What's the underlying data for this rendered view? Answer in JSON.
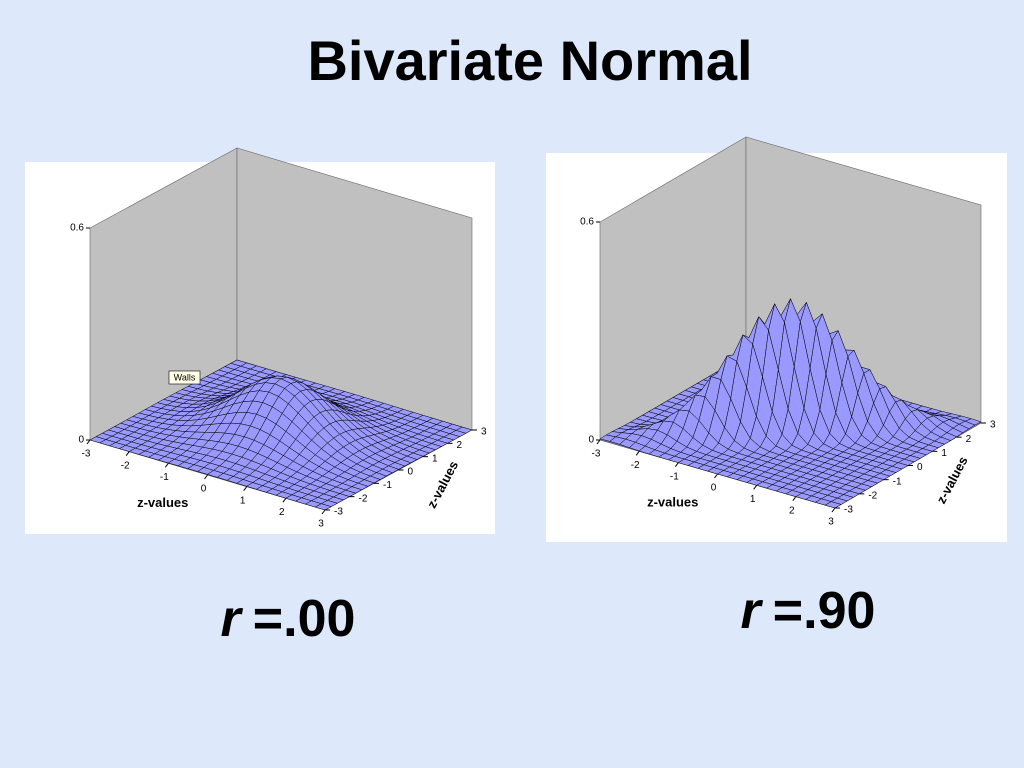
{
  "title": "Bivariate Normal",
  "chart_data": [
    {
      "type": "surface",
      "xlabel": "z-values",
      "ylabel": "z-values",
      "xlim": [
        -3,
        3
      ],
      "ylim": [
        -3,
        3
      ],
      "zlim": [
        0,
        0.6
      ],
      "xticks": [
        -3,
        -2,
        -1,
        0,
        1,
        2,
        3
      ],
      "yticks": [
        -3,
        -2,
        -1,
        0,
        1,
        2,
        3
      ],
      "zticks": [
        0,
        0.6
      ],
      "color": "#9999ff",
      "wall_color": "#c0c0c0",
      "annotation": "Walls",
      "caption": {
        "symbol": "r",
        "correlation": {
          "value": 0,
          "label": "=.00"
        }
      }
    },
    {
      "type": "surface",
      "xlabel": "z-values",
      "ylabel": "z-values",
      "xlim": [
        -3,
        3
      ],
      "ylim": [
        -3,
        3
      ],
      "zlim": [
        0,
        0.6
      ],
      "xticks": [
        -3,
        -2,
        -1,
        0,
        1,
        2,
        3
      ],
      "yticks": [
        -3,
        -2,
        -1,
        0,
        1,
        2,
        3
      ],
      "zticks": [
        0,
        0.6
      ],
      "color": "#9999ff",
      "wall_color": "#c0c0c0",
      "caption": {
        "symbol": "r",
        "correlation": {
          "value": 0.9,
          "label": "=.90"
        }
      }
    }
  ]
}
